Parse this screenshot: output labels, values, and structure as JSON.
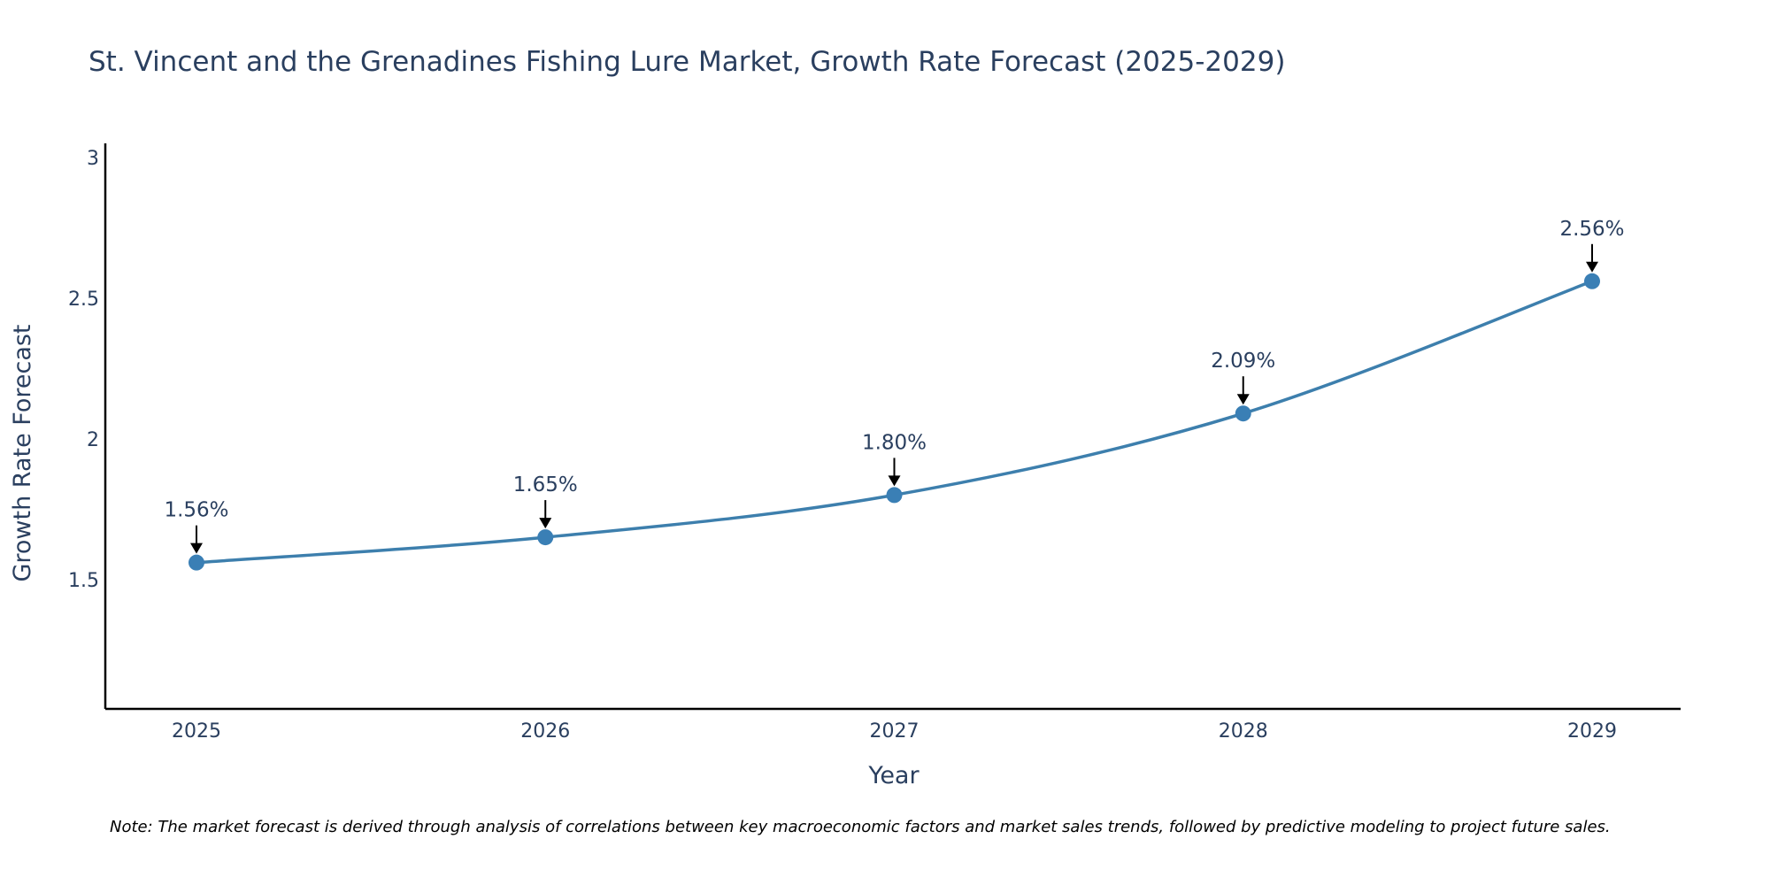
{
  "colors": {
    "line": "#3d7fad",
    "marker": "#3a7fb5",
    "axis": "#000000",
    "text": "#2a3f5f",
    "arrow": "#000000"
  },
  "chart_data": {
    "type": "line",
    "title": "St. Vincent and the Grenadines Fishing Lure Market, Growth Rate Forecast (2025-2029)",
    "xlabel": "Year",
    "ylabel": "Growth Rate Forecast",
    "categories": [
      "2025",
      "2026",
      "2027",
      "2028",
      "2029"
    ],
    "series": [
      {
        "name": "Growth Rate Forecast",
        "values": [
          1.56,
          1.65,
          1.8,
          2.09,
          2.56
        ]
      }
    ],
    "data_labels": [
      "1.56%",
      "1.65%",
      "1.80%",
      "2.09%",
      "2.56%"
    ],
    "yticks": [
      1.5,
      2,
      2.5,
      3
    ],
    "ytick_labels": [
      "1.5",
      "2",
      "2.5",
      "3"
    ],
    "ylim": [
      1.04,
      3.05
    ],
    "grid": false,
    "legend": "none",
    "line_shape": "spline"
  },
  "note": "Note: The market forecast is derived through analysis of correlations between key macroeconomic factors and market sales trends, followed by predictive modeling to project future sales."
}
